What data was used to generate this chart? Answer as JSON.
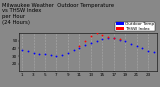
{
  "title": "Milwaukee Weather  Outdoor Temperature\nvs THSW Index\nper Hour\n(24 Hours)",
  "bg_color": "#888888",
  "plot_bg_color": "#888888",
  "grid_color": "#bbbbbb",
  "xlim": [
    0.5,
    24.5
  ],
  "ylim": [
    10,
    60
  ],
  "ytick_vals": [
    20,
    30,
    40,
    50
  ],
  "ytick_labels": [
    "20",
    "30",
    "40",
    "50"
  ],
  "xtick_vals": [
    1,
    3,
    5,
    7,
    9,
    11,
    13,
    15,
    17,
    19,
    21,
    23
  ],
  "hours": [
    1,
    2,
    3,
    4,
    5,
    6,
    7,
    8,
    9,
    10,
    11,
    12,
    13,
    14,
    15,
    16,
    17,
    18,
    19,
    20,
    21,
    22,
    23,
    24
  ],
  "temp_values": [
    38,
    36,
    34,
    33,
    32,
    31,
    30,
    31,
    34,
    38,
    41,
    44,
    47,
    50,
    52,
    53,
    53,
    51,
    49,
    46,
    43,
    40,
    37,
    35
  ],
  "thsw_values": [
    null,
    null,
    null,
    null,
    null,
    null,
    null,
    null,
    null,
    null,
    43,
    50,
    56,
    60,
    58,
    55,
    54,
    52,
    null,
    null,
    null,
    null,
    null,
    null
  ],
  "temp_color": "#0000ff",
  "thsw_color": "#ff0000",
  "legend_temp_label": "Outdoor Temp",
  "legend_thsw_label": "THSW Index",
  "title_fontsize": 3.8,
  "tick_fontsize": 3.0,
  "legend_fontsize": 3.0,
  "marker_size": 1.8,
  "dpi": 100
}
